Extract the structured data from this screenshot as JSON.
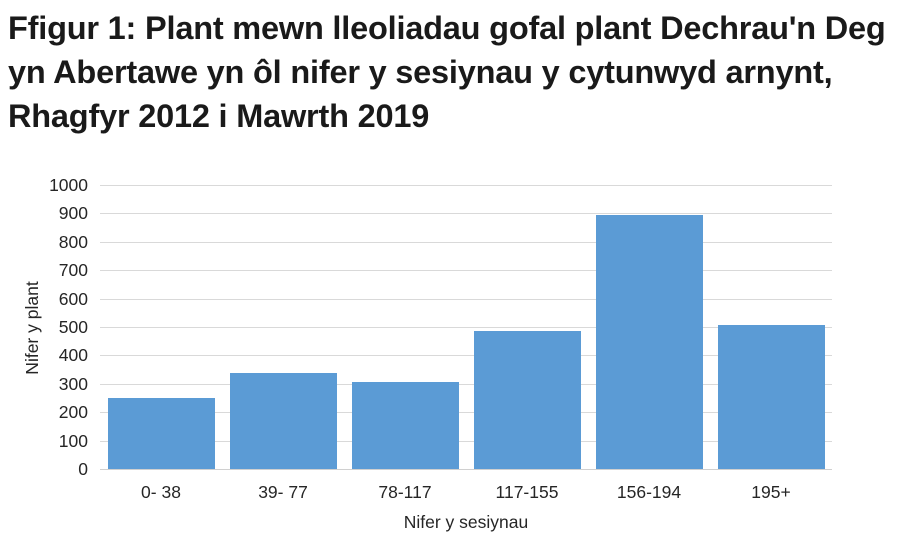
{
  "title": "Ffigur 1: Plant mewn lleoliadau gofal plant Dechrau'n Deg yn Abertawe yn ôl nifer y sesiynau y cytunwyd arnynt, Rhagfyr 2012 i Mawrth 2019",
  "colors": {
    "bar": "#5b9bd5",
    "gridline": "#d9d9d9",
    "text": "#262626"
  },
  "chart_data": {
    "type": "bar",
    "title": "Ffigur 1: Plant mewn lleoliadau gofal plant Dechrau'n Deg yn Abertawe yn ôl nifer y sesiynau y cytunwyd arnynt, Rhagfyr 2012 i Mawrth 2019",
    "xlabel": "Nifer y sesiynau",
    "ylabel": "Nifer y plant",
    "categories": [
      "0- 38",
      "39- 77",
      "78-117",
      "117-155",
      "156-194",
      "195+"
    ],
    "values": [
      250,
      338,
      306,
      486,
      894,
      507
    ],
    "ylim": [
      0,
      1000
    ],
    "yticks": [
      0,
      100,
      200,
      300,
      400,
      500,
      600,
      700,
      800,
      900,
      1000
    ],
    "grid": true,
    "legend": null
  }
}
